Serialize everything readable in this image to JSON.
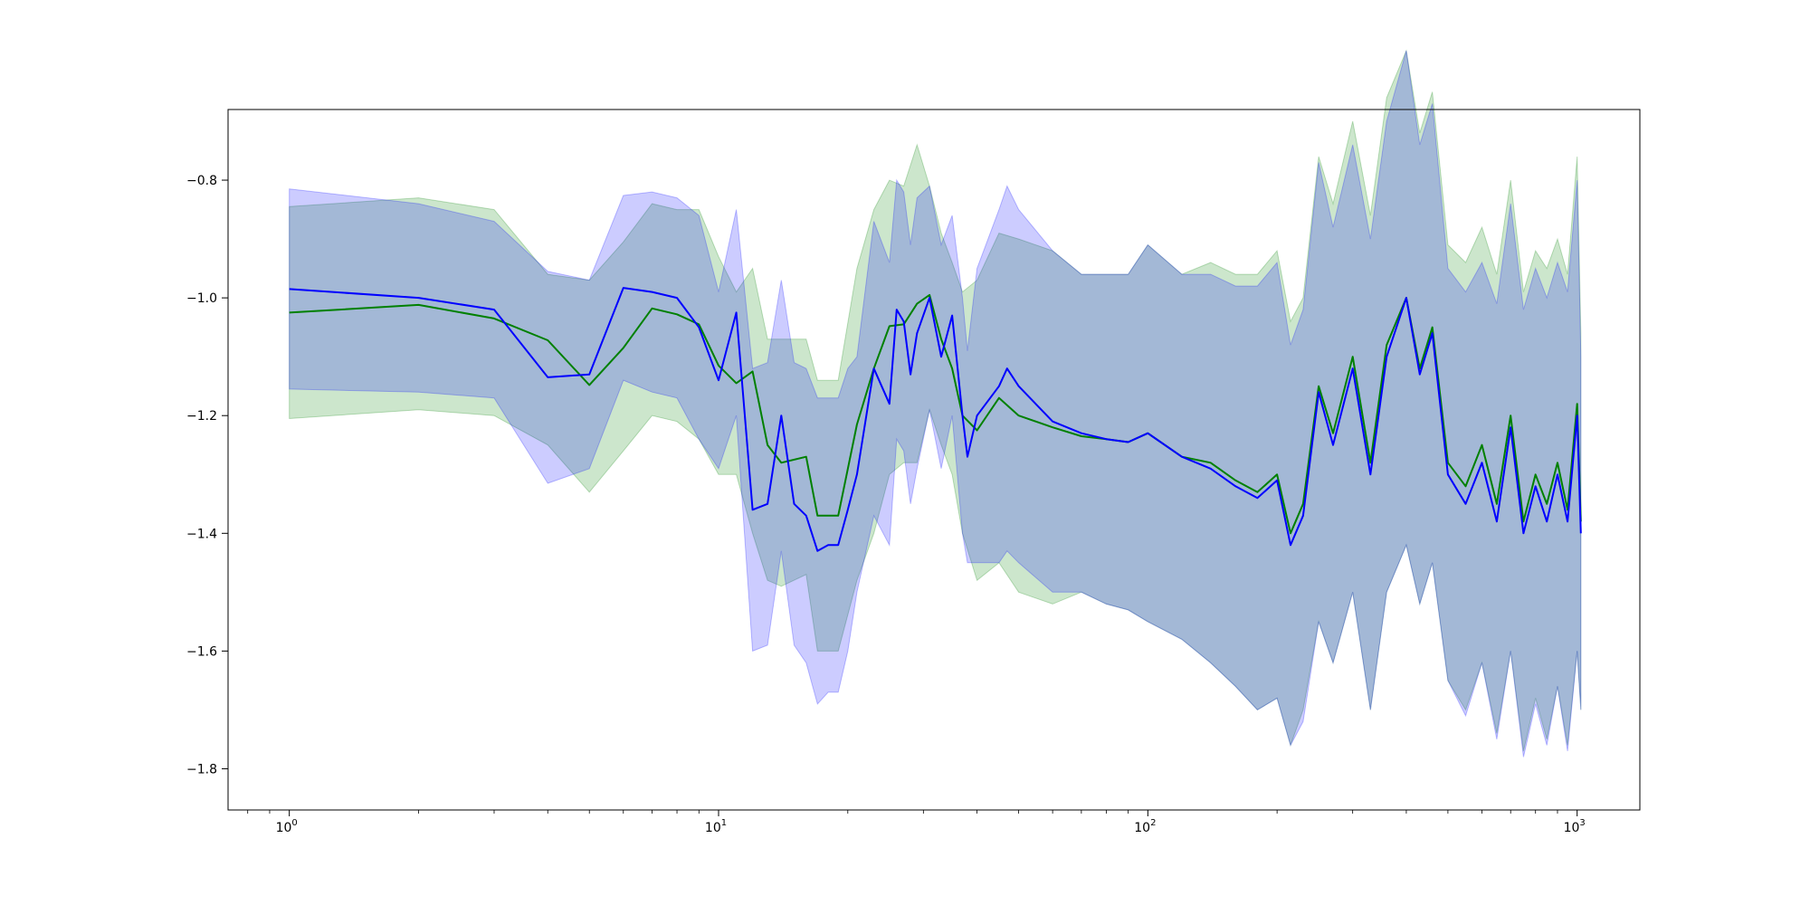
{
  "chart_data": {
    "type": "line",
    "xscale": "log",
    "xlim": [
      0.72,
      1400
    ],
    "ylim": [
      -1.87,
      -0.68
    ],
    "grid": false,
    "x_ticks": [
      {
        "value": 1,
        "base": "10",
        "exp": "0"
      },
      {
        "value": 10,
        "base": "10",
        "exp": "1"
      },
      {
        "value": 100,
        "base": "10",
        "exp": "2"
      },
      {
        "value": 1000,
        "base": "10",
        "exp": "3"
      }
    ],
    "y_ticks": [
      {
        "value": -0.8,
        "label": "−0.8"
      },
      {
        "value": -1.0,
        "label": "−1.0"
      },
      {
        "value": -1.2,
        "label": "−1.2"
      },
      {
        "value": -1.4,
        "label": "−1.4"
      },
      {
        "value": -1.6,
        "label": "−1.6"
      },
      {
        "value": -1.8,
        "label": "−1.8"
      }
    ],
    "series": [
      {
        "color": "#008000",
        "band_color": "#008000",
        "band_alpha": 0.2,
        "x": [
          1,
          2,
          3,
          4,
          5,
          6,
          7,
          8,
          9,
          10,
          11,
          12,
          13,
          14,
          16,
          17,
          19,
          21,
          23,
          25,
          27,
          29,
          31,
          33,
          35,
          37,
          40,
          45,
          50,
          60,
          70,
          80,
          90,
          100,
          120,
          140,
          160,
          180,
          200,
          215,
          230,
          250,
          270,
          300,
          330,
          360,
          400,
          430,
          460,
          500,
          550,
          600,
          650,
          700,
          750,
          800,
          850,
          900,
          950,
          1000,
          1020
        ],
        "mean": [
          -1.025,
          -1.012,
          -1.035,
          -1.072,
          -1.148,
          -1.085,
          -1.018,
          -1.028,
          -1.045,
          -1.115,
          -1.145,
          -1.125,
          -1.25,
          -1.28,
          -1.27,
          -1.37,
          -1.37,
          -1.215,
          -1.12,
          -1.048,
          -1.045,
          -1.01,
          -0.995,
          -1.07,
          -1.12,
          -1.2,
          -1.225,
          -1.17,
          -1.2,
          -1.22,
          -1.235,
          -1.24,
          -1.245,
          -1.23,
          -1.27,
          -1.28,
          -1.31,
          -1.33,
          -1.3,
          -1.4,
          -1.35,
          -1.15,
          -1.23,
          -1.1,
          -1.28,
          -1.08,
          -1.0,
          -1.12,
          -1.05,
          -1.28,
          -1.32,
          -1.25,
          -1.35,
          -1.2,
          -1.38,
          -1.3,
          -1.35,
          -1.28,
          -1.36,
          -1.18,
          -1.38
        ],
        "lower": [
          -1.205,
          -1.19,
          -1.2,
          -1.25,
          -1.33,
          -1.26,
          -1.2,
          -1.21,
          -1.24,
          -1.3,
          -1.3,
          -1.4,
          -1.48,
          -1.49,
          -1.47,
          -1.6,
          -1.6,
          -1.48,
          -1.4,
          -1.3,
          -1.28,
          -1.28,
          -1.19,
          -1.25,
          -1.3,
          -1.4,
          -1.48,
          -1.45,
          -1.5,
          -1.52,
          -1.5,
          -1.52,
          -1.53,
          -1.55,
          -1.58,
          -1.62,
          -1.66,
          -1.7,
          -1.68,
          -1.76,
          -1.7,
          -1.55,
          -1.62,
          -1.5,
          -1.7,
          -1.5,
          -1.42,
          -1.52,
          -1.45,
          -1.65,
          -1.7,
          -1.62,
          -1.74,
          -1.6,
          -1.77,
          -1.68,
          -1.75,
          -1.66,
          -1.76,
          -1.6,
          -1.7
        ],
        "upper": [
          -0.845,
          -0.83,
          -0.85,
          -0.96,
          -0.97,
          -0.905,
          -0.84,
          -0.85,
          -0.85,
          -0.93,
          -0.99,
          -0.95,
          -1.07,
          -1.07,
          -1.07,
          -1.14,
          -1.14,
          -0.95,
          -0.85,
          -0.8,
          -0.81,
          -0.74,
          -0.81,
          -0.89,
          -0.94,
          -0.99,
          -0.97,
          -0.89,
          -0.9,
          -0.92,
          -0.96,
          -0.96,
          -0.96,
          -0.91,
          -0.96,
          -0.94,
          -0.96,
          -0.96,
          -0.92,
          -1.04,
          -1.0,
          -0.76,
          -0.84,
          -0.7,
          -0.86,
          -0.66,
          -0.58,
          -0.72,
          -0.65,
          -0.91,
          -0.94,
          -0.88,
          -0.96,
          -0.8,
          -0.99,
          -0.92,
          -0.95,
          -0.9,
          -0.96,
          -0.76,
          -1.06
        ]
      },
      {
        "color": "#0000ff",
        "band_color": "#0000ff",
        "band_alpha": 0.2,
        "x": [
          1,
          2,
          3,
          4,
          5,
          6,
          7,
          8,
          9,
          10,
          11,
          12,
          13,
          14,
          15,
          16,
          17,
          18,
          19,
          20,
          21,
          23,
          25,
          26,
          27,
          28,
          29,
          31,
          33,
          35,
          37,
          38,
          40,
          45,
          47,
          50,
          60,
          70,
          80,
          90,
          100,
          120,
          140,
          160,
          180,
          200,
          215,
          230,
          250,
          270,
          300,
          330,
          360,
          400,
          430,
          460,
          500,
          550,
          600,
          650,
          700,
          750,
          800,
          850,
          900,
          950,
          1000,
          1020
        ],
        "mean": [
          -0.985,
          -1.0,
          -1.02,
          -1.135,
          -1.13,
          -0.983,
          -0.99,
          -1.0,
          -1.05,
          -1.14,
          -1.025,
          -1.36,
          -1.35,
          -1.2,
          -1.35,
          -1.37,
          -1.43,
          -1.42,
          -1.42,
          -1.36,
          -1.3,
          -1.12,
          -1.18,
          -1.02,
          -1.04,
          -1.13,
          -1.06,
          -1.0,
          -1.1,
          -1.03,
          -1.2,
          -1.27,
          -1.2,
          -1.15,
          -1.12,
          -1.15,
          -1.21,
          -1.23,
          -1.24,
          -1.245,
          -1.23,
          -1.27,
          -1.29,
          -1.32,
          -1.34,
          -1.31,
          -1.42,
          -1.37,
          -1.16,
          -1.25,
          -1.12,
          -1.3,
          -1.1,
          -1.0,
          -1.13,
          -1.06,
          -1.3,
          -1.35,
          -1.28,
          -1.38,
          -1.22,
          -1.4,
          -1.32,
          -1.38,
          -1.3,
          -1.38,
          -1.2,
          -1.4
        ],
        "lower": [
          -1.155,
          -1.16,
          -1.17,
          -1.315,
          -1.29,
          -1.14,
          -1.16,
          -1.17,
          -1.24,
          -1.29,
          -1.2,
          -1.6,
          -1.59,
          -1.43,
          -1.59,
          -1.62,
          -1.69,
          -1.67,
          -1.67,
          -1.6,
          -1.5,
          -1.37,
          -1.42,
          -1.24,
          -1.26,
          -1.35,
          -1.29,
          -1.19,
          -1.29,
          -1.2,
          -1.4,
          -1.45,
          -1.45,
          -1.45,
          -1.43,
          -1.45,
          -1.5,
          -1.5,
          -1.52,
          -1.53,
          -1.55,
          -1.58,
          -1.62,
          -1.66,
          -1.7,
          -1.68,
          -1.76,
          -1.72,
          -1.55,
          -1.62,
          -1.5,
          -1.7,
          -1.5,
          -1.42,
          -1.52,
          -1.45,
          -1.65,
          -1.71,
          -1.62,
          -1.75,
          -1.6,
          -1.78,
          -1.69,
          -1.76,
          -1.66,
          -1.77,
          -1.6,
          -1.7
        ],
        "upper": [
          -0.815,
          -0.84,
          -0.87,
          -0.955,
          -0.97,
          -0.826,
          -0.82,
          -0.83,
          -0.86,
          -0.99,
          -0.85,
          -1.12,
          -1.11,
          -0.97,
          -1.11,
          -1.12,
          -1.17,
          -1.17,
          -1.17,
          -1.12,
          -1.1,
          -0.87,
          -0.94,
          -0.8,
          -0.82,
          -0.91,
          -0.83,
          -0.81,
          -0.91,
          -0.86,
          -1.0,
          -1.09,
          -0.95,
          -0.85,
          -0.81,
          -0.85,
          -0.92,
          -0.96,
          -0.96,
          -0.96,
          -0.91,
          -0.96,
          -0.96,
          -0.98,
          -0.98,
          -0.94,
          -1.08,
          -1.02,
          -0.77,
          -0.88,
          -0.74,
          -0.9,
          -0.7,
          -0.58,
          -0.74,
          -0.67,
          -0.95,
          -0.99,
          -0.94,
          -1.01,
          -0.84,
          -1.02,
          -0.95,
          -1.0,
          -0.94,
          -0.99,
          -0.8,
          -1.1
        ]
      }
    ]
  }
}
